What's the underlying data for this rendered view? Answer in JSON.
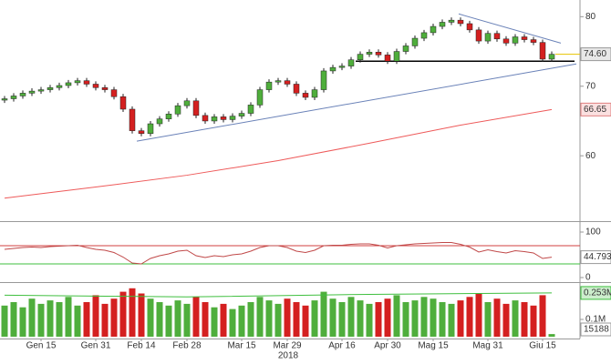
{
  "chart_data": {
    "type": "candlestick",
    "categories": [
      null,
      null,
      null,
      null,
      "Gen 15",
      null,
      null,
      null,
      null,
      null,
      "Gen 31",
      null,
      null,
      null,
      null,
      "Feb 14",
      null,
      null,
      null,
      null,
      "Feb 28",
      null,
      null,
      null,
      null,
      null,
      "Mar 15",
      null,
      null,
      null,
      null,
      "Mar 29",
      null,
      null,
      null,
      null,
      null,
      "Apr 16",
      null,
      null,
      null,
      null,
      "Apr 30",
      null,
      null,
      null,
      null,
      "Mag 15",
      null,
      null,
      null,
      null,
      null,
      "Mag 31",
      null,
      null,
      null,
      null,
      null,
      "Giu 15",
      null
    ],
    "open": [
      68.0,
      68.2,
      68.6,
      69.0,
      69.3,
      69.5,
      69.8,
      70.1,
      70.5,
      70.8,
      70.3,
      69.8,
      69.5,
      68.5,
      66.7,
      63.6,
      63.2,
      64.6,
      65.3,
      66.0,
      67.2,
      67.9,
      65.8,
      65.0,
      65.6,
      65.2,
      65.7,
      66.1,
      67.3,
      69.5,
      70.6,
      70.8,
      70.3,
      69.0,
      68.4,
      69.5,
      72.2,
      72.7,
      72.9,
      73.8,
      74.6,
      74.9,
      74.5,
      73.6,
      75.0,
      75.8,
      76.9,
      77.7,
      78.6,
      79.2,
      79.5,
      79.0,
      78.1,
      76.5,
      77.6,
      76.8,
      76.2,
      77.1,
      76.7,
      76.3,
      73.9
    ],
    "high": [
      68.6,
      69.0,
      69.4,
      69.7,
      69.9,
      70.2,
      70.5,
      70.9,
      71.2,
      71.2,
      70.7,
      70.2,
      69.9,
      68.9,
      67.1,
      64.0,
      65.0,
      65.7,
      66.4,
      67.6,
      68.3,
      68.3,
      66.2,
      66.0,
      66.0,
      66.1,
      66.5,
      67.7,
      69.9,
      71.0,
      71.2,
      71.2,
      70.7,
      69.4,
      69.9,
      72.6,
      73.1,
      73.3,
      74.2,
      75.0,
      75.3,
      75.3,
      74.9,
      75.4,
      76.2,
      77.3,
      78.1,
      79.0,
      79.6,
      79.9,
      79.9,
      79.4,
      78.5,
      78.0,
      78.0,
      77.2,
      77.5,
      77.5,
      77.1,
      76.7,
      75.0
    ],
    "low": [
      67.6,
      67.8,
      68.2,
      68.6,
      68.9,
      69.1,
      69.4,
      69.7,
      70.1,
      69.9,
      69.4,
      69.1,
      68.1,
      66.3,
      63.2,
      62.8,
      62.8,
      64.2,
      64.9,
      65.6,
      66.8,
      65.4,
      64.6,
      64.6,
      64.8,
      64.8,
      65.3,
      65.7,
      66.9,
      69.1,
      70.2,
      69.9,
      68.6,
      68.0,
      68.0,
      69.1,
      71.8,
      72.3,
      72.5,
      73.4,
      74.2,
      74.1,
      73.2,
      73.2,
      74.6,
      75.4,
      76.5,
      77.3,
      78.2,
      78.8,
      78.6,
      77.7,
      76.1,
      76.1,
      76.4,
      75.8,
      75.8,
      76.3,
      75.9,
      73.5,
      73.5
    ],
    "close": [
      68.2,
      68.6,
      69.0,
      69.3,
      69.5,
      69.8,
      70.1,
      70.5,
      70.8,
      70.3,
      69.8,
      69.5,
      68.5,
      66.7,
      63.6,
      63.2,
      64.6,
      65.3,
      66.0,
      67.2,
      67.9,
      65.8,
      65.0,
      65.6,
      65.2,
      65.7,
      66.1,
      67.3,
      69.5,
      70.6,
      70.8,
      70.3,
      69.0,
      68.4,
      69.5,
      72.2,
      72.7,
      72.9,
      73.8,
      74.6,
      74.9,
      74.5,
      73.6,
      75.0,
      75.8,
      76.9,
      77.7,
      78.6,
      79.2,
      79.5,
      79.0,
      78.1,
      76.5,
      77.6,
      76.8,
      76.2,
      77.1,
      76.7,
      76.3,
      73.9,
      74.6
    ],
    "up_color": "#4fae3c",
    "down_color": "#d42020",
    "ylim": [
      50.6,
      82.4
    ],
    "yticks": [
      60,
      70,
      80
    ],
    "last_label": {
      "value": 74.6,
      "label": "74.60"
    },
    "last_color": "#e6c200",
    "ma": {
      "color": "#ee5a5a",
      "x": [
        0,
        10,
        20,
        30,
        40,
        50,
        60
      ],
      "values": [
        53.9,
        55.5,
        57.2,
        59.3,
        61.8,
        64.4,
        66.65
      ]
    },
    "trendlines": [
      {
        "color": "#6a82b8",
        "x": [
          14.5,
          62.7
        ],
        "values": [
          62.1,
          73.2
        ]
      },
      {
        "color": "#6a82b8",
        "x": [
          49.8,
          61
        ],
        "values": [
          80.4,
          76.2
        ]
      },
      {
        "color": "#000000",
        "x": [
          38.5,
          62.5
        ],
        "values": [
          73.6,
          73.6
        ]
      }
    ],
    "rsi": {
      "color": "#c04848",
      "ylim": [
        -6,
        116
      ],
      "yticks": [
        0,
        50,
        100
      ],
      "levels": [
        {
          "value": 70,
          "color": "#d04040"
        },
        {
          "value": 30,
          "color": "#3fbf3f"
        }
      ],
      "values": [
        62,
        64,
        66,
        67,
        66,
        68,
        69,
        70,
        71,
        66,
        62,
        60,
        55,
        45,
        32,
        30,
        42,
        48,
        52,
        58,
        60,
        48,
        44,
        48,
        46,
        50,
        52,
        58,
        66,
        70,
        70,
        66,
        58,
        55,
        60,
        70,
        71,
        71,
        73,
        74,
        74,
        71,
        65,
        70,
        72,
        74,
        75,
        76,
        77,
        77,
        73,
        67,
        56,
        61,
        57,
        54,
        59,
        57,
        54,
        42,
        44.7935
      ]
    },
    "volume": {
      "ylim": [
        0,
        300000
      ],
      "yticks": [
        {
          "value": 100000,
          "label": "0.1M"
        }
      ],
      "values": [
        180000,
        200000,
        170000,
        220000,
        190000,
        210000,
        200000,
        230000,
        180000,
        200000,
        240000,
        190000,
        220000,
        260000,
        280000,
        250000,
        220000,
        200000,
        180000,
        210000,
        190000,
        230000,
        200000,
        170000,
        190000,
        160000,
        180000,
        200000,
        230000,
        210000,
        190000,
        220000,
        200000,
        180000,
        210000,
        260000,
        220000,
        200000,
        230000,
        210000,
        190000,
        200000,
        220000,
        240000,
        200000,
        210000,
        230000,
        220000,
        200000,
        190000,
        210000,
        230000,
        250000,
        200000,
        220000,
        190000,
        210000,
        200000,
        180000,
        240000,
        15188
      ],
      "ma": {
        "color": "#3fbf3f",
        "x": [
          0,
          20,
          40,
          60
        ],
        "values": [
          240000,
          230000,
          245000,
          253000
        ],
        "value_labels": [
          null,
          null,
          null,
          "0.253M"
        ]
      }
    },
    "annotation": "2018"
  }
}
